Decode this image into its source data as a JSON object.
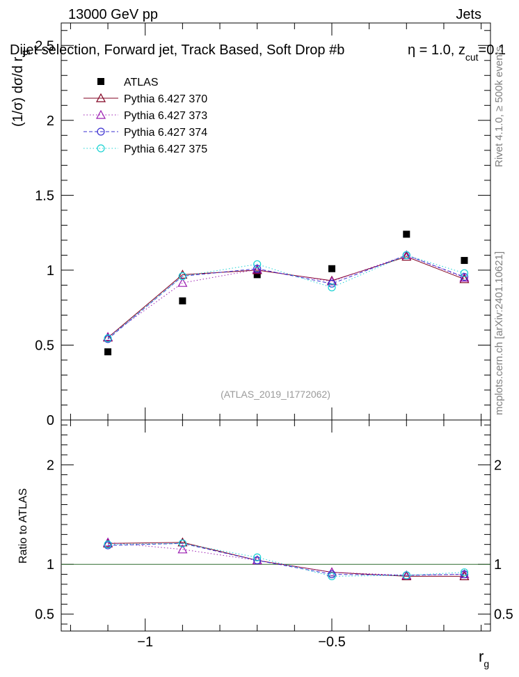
{
  "header": {
    "energy_label": "13000 GeV pp",
    "process_label": "Jets",
    "selection_label": "Dijet selection, Forward jet, Track Based, Soft Drop #b",
    "params_eta": "η = 1.0, z",
    "params_sub": "cut",
    "params_value": "=0.1",
    "side_label_top": "Rivet 4.1.0, ≥ 500k events",
    "side_label_bottom": "mcplots.cern.ch [arXiv:2401.10621]",
    "analysis_id": "(ATLAS_2019_I1772062)"
  },
  "colors": {
    "atlas": "#000000",
    "p370": "#800020",
    "p373": "#9a1ab0",
    "p374": "#3a2fd0",
    "p375": "#18d2d2",
    "ratio_line": "#2e6b2e"
  },
  "chart_data": [
    {
      "type": "scatter",
      "panel": "main",
      "ylabel_main": "(1/σ) dσ/d r",
      "ylabel_sub": "g",
      "xlim": [
        -1.225,
        -0.075
      ],
      "ylim": [
        0,
        2.65
      ],
      "yticks": [
        0,
        0.5,
        1,
        1.5,
        2,
        2.5
      ],
      "ytick_labels": [
        "0",
        "0.5",
        "1",
        "1.5",
        "2",
        "2.5"
      ],
      "x": [
        -1.1,
        -0.9,
        -0.7,
        -0.5,
        -0.3,
        -0.145
      ],
      "series": [
        {
          "name": "ATLAS",
          "key": "atlas",
          "marker": "square",
          "line": "none",
          "values": [
            0.455,
            0.795,
            0.97,
            1.01,
            1.24,
            1.065
          ]
        },
        {
          "name": "Pythia 6.427 370",
          "key": "p370",
          "marker": "triangle",
          "line": "solid",
          "values": [
            0.55,
            0.97,
            1.0,
            0.93,
            1.09,
            0.94
          ]
        },
        {
          "name": "Pythia 6.427 373",
          "key": "p373",
          "marker": "triangle",
          "line": "dotted",
          "values": [
            0.555,
            0.915,
            1.005,
            0.925,
            1.1,
            0.95
          ]
        },
        {
          "name": "Pythia 6.427 374",
          "key": "p374",
          "marker": "circle",
          "line": "dashed",
          "values": [
            0.54,
            0.96,
            1.01,
            0.91,
            1.1,
            0.955
          ]
        },
        {
          "name": "Pythia 6.427 375",
          "key": "p375",
          "marker": "circle",
          "line": "dotted",
          "values": [
            0.545,
            0.96,
            1.04,
            0.885,
            1.1,
            0.98
          ]
        }
      ]
    },
    {
      "type": "line",
      "panel": "ratio",
      "ylabel": "Ratio to ATLAS",
      "xlabel_main": "r",
      "xlabel_sub": "g",
      "xlim": [
        -1.225,
        -0.075
      ],
      "ylim": [
        0.33,
        2.45
      ],
      "yticks": [
        0.5,
        1,
        2
      ],
      "ytick_labels": [
        "0.5",
        "1",
        "2"
      ],
      "xticks": [
        -1,
        -0.5
      ],
      "xtick_labels": [
        "−1",
        "−0.5"
      ],
      "reference": 1,
      "x": [
        -1.1,
        -0.9,
        -0.7,
        -0.5,
        -0.3,
        -0.145
      ],
      "series": [
        {
          "name": "Pythia 6.427 370",
          "key": "p370",
          "marker": "triangle",
          "line": "solid",
          "values": [
            1.21,
            1.22,
            1.04,
            0.92,
            0.88,
            0.88
          ]
        },
        {
          "name": "Pythia 6.427 373",
          "key": "p373",
          "marker": "triangle",
          "line": "dotted",
          "values": [
            1.22,
            1.15,
            1.04,
            0.92,
            0.89,
            0.9
          ]
        },
        {
          "name": "Pythia 6.427 374",
          "key": "p374",
          "marker": "circle",
          "line": "dashed",
          "values": [
            1.19,
            1.21,
            1.04,
            0.9,
            0.89,
            0.9
          ]
        },
        {
          "name": "Pythia 6.427 375",
          "key": "p375",
          "marker": "circle",
          "line": "dotted",
          "values": [
            1.2,
            1.21,
            1.07,
            0.88,
            0.89,
            0.92
          ]
        }
      ]
    }
  ]
}
